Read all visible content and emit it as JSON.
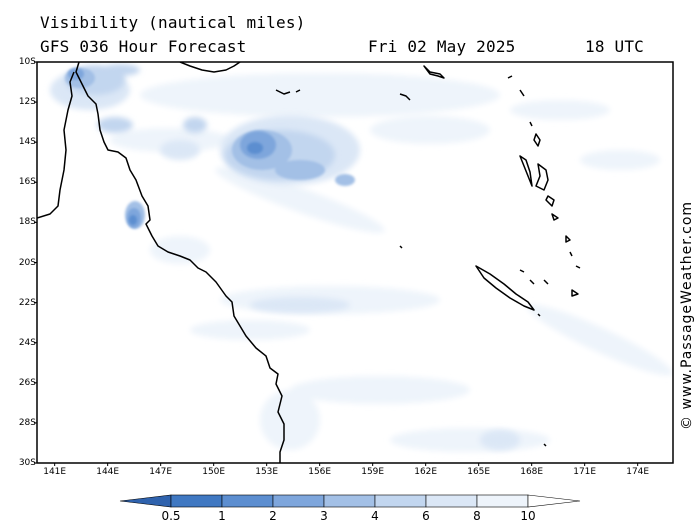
{
  "header": {
    "title": "Visibility (nautical miles)",
    "model_line": "GFS 036 Hour Forecast",
    "date": "Fri 02 May 2025",
    "time": "18 UTC"
  },
  "map": {
    "lat_labels": [
      "10S",
      "12S",
      "14S",
      "16S",
      "18S",
      "20S",
      "22S",
      "24S",
      "26S",
      "28S",
      "30S"
    ],
    "lon_labels": [
      "141E",
      "144E",
      "147E",
      "150E",
      "153E",
      "156E",
      "159E",
      "162E",
      "165E",
      "168E",
      "171E",
      "174E"
    ],
    "lat_range": [
      -30,
      -10
    ],
    "lon_range": [
      140,
      176
    ]
  },
  "watermark": "© www.PassageWeather.com",
  "legend": {
    "thresholds": [
      "0.5",
      "1",
      "2",
      "3",
      "4",
      "6",
      "8",
      "10"
    ],
    "colors": [
      "#3f78c2",
      "#5c8ed0",
      "#7ea6dc",
      "#a3c0e6",
      "#c2d6ef",
      "#dbe7f6",
      "#eef4fb",
      "#ffffff"
    ]
  }
}
